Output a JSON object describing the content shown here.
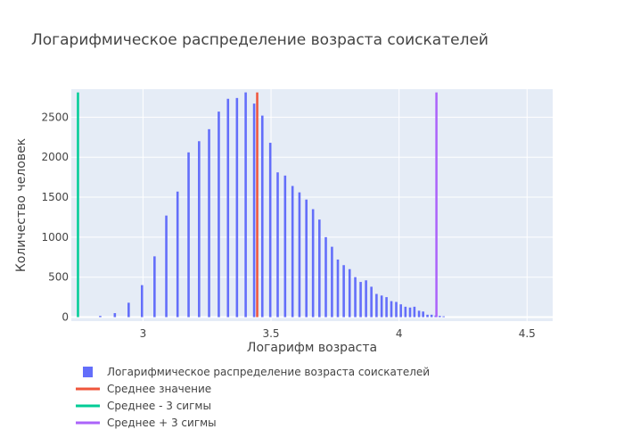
{
  "chart_data": {
    "type": "bar",
    "title": "Логарифмическое распределение возраста соискателей",
    "xlabel": "Логарифм возраста",
    "ylabel": "Количество человек",
    "xlim": [
      2.72,
      4.6
    ],
    "ylim": [
      -50,
      2850
    ],
    "x_ticks": [
      3,
      3.5,
      4,
      4.5
    ],
    "x_tick_labels": [
      "3",
      "3.5",
      "4",
      "4.5"
    ],
    "y_ticks": [
      0,
      500,
      1000,
      1500,
      2000,
      2500
    ],
    "y_tick_labels": [
      "0",
      "500",
      "1000",
      "1500",
      "2000",
      "2500"
    ],
    "grid": true,
    "legend_position": "bottom-left",
    "bar_width": 0.009,
    "series": [
      {
        "name": "Логарифмическое распределение возраста соискателей",
        "kind": "bar",
        "color": "#636efa",
        "x": [
          2.833,
          2.89,
          2.944,
          2.996,
          3.045,
          3.091,
          3.135,
          3.178,
          3.219,
          3.258,
          3.296,
          3.332,
          3.367,
          3.401,
          3.434,
          3.466,
          3.497,
          3.526,
          3.555,
          3.584,
          3.611,
          3.638,
          3.664,
          3.689,
          3.714,
          3.738,
          3.761,
          3.784,
          3.807,
          3.829,
          3.85,
          3.871,
          3.892,
          3.912,
          3.932,
          3.951,
          3.97,
          3.989,
          4.007,
          4.025,
          4.043,
          4.06,
          4.078,
          4.094,
          4.111,
          4.127,
          4.143,
          4.159,
          4.174
        ],
        "y": [
          15,
          50,
          180,
          400,
          760,
          1270,
          1570,
          2060,
          2200,
          2350,
          2570,
          2730,
          2740,
          2810,
          2670,
          2520,
          2180,
          1810,
          1770,
          1640,
          1560,
          1470,
          1350,
          1220,
          1000,
          880,
          720,
          650,
          600,
          500,
          440,
          460,
          380,
          290,
          270,
          250,
          200,
          190,
          160,
          130,
          120,
          130,
          80,
          70,
          30,
          30,
          20,
          15,
          10
        ]
      },
      {
        "name": "Среднее значение",
        "kind": "vline",
        "color": "#ef553b",
        "x": 3.446,
        "y": [
          0,
          2810
        ]
      },
      {
        "name": "Среднее - 3 сигмы",
        "kind": "vline",
        "color": "#00cc96",
        "x": 2.746,
        "y": [
          0,
          2810
        ]
      },
      {
        "name": "Среднее + 3 сигмы",
        "kind": "vline",
        "color": "#ab63fa",
        "x": 4.146,
        "y": [
          0,
          2810
        ]
      }
    ]
  }
}
